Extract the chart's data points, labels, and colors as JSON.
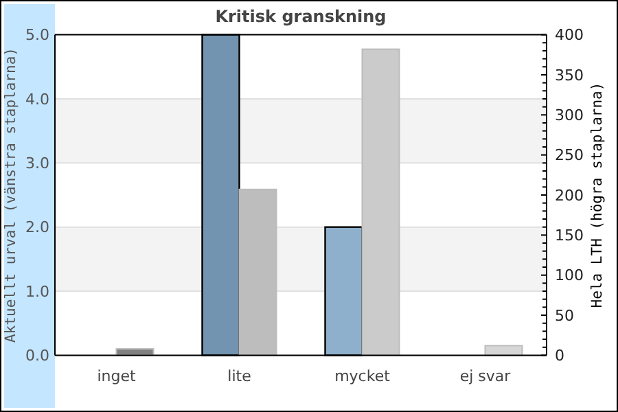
{
  "chart_data": {
    "type": "bar",
    "title": "Kritisk granskning",
    "categories": [
      "inget",
      "lite",
      "mycket",
      "ej svar"
    ],
    "ylabel": "Aktuellt urval (vänstra staplarna)",
    "y2label": "Hela LTH (högra staplarna)",
    "series": [
      {
        "values": [
          0,
          5.0,
          2.0,
          0
        ],
        "colors": [
          "#7294b0",
          "#7294b0",
          "#8fb0cc",
          "#8fb0cc"
        ]
      },
      {
        "values": [
          8,
          207,
          382,
          12
        ],
        "axis": "y2",
        "colors": [
          "#808080",
          "#bdbdbd",
          "#cbcbcb",
          "#d6d6d6"
        ]
      }
    ],
    "ylim": [
      0,
      5
    ],
    "yticks": [
      {
        "value": 0,
        "label": "0.0"
      },
      {
        "value": 1,
        "label": "1.0"
      },
      {
        "value": 2,
        "label": "2.0"
      },
      {
        "value": 3,
        "label": "3.0"
      },
      {
        "value": 4,
        "label": "4.0"
      },
      {
        "value": 5,
        "label": "5.0"
      }
    ],
    "y2lim": [
      0,
      400
    ],
    "y2ticks": [
      0,
      {
        "value": 10,
        "label": null
      },
      {
        "value": 20,
        "label": null
      },
      {
        "value": 30,
        "label": null
      },
      {
        "value": 40,
        "label": null
      },
      50,
      {
        "value": 60,
        "label": null
      },
      {
        "value": 70,
        "label": null
      },
      {
        "value": 80,
        "label": null
      },
      {
        "value": 90,
        "label": null
      },
      100,
      {
        "value": 110,
        "label": null
      },
      {
        "value": 120,
        "label": null
      },
      {
        "value": 130,
        "label": null
      },
      {
        "value": 140,
        "label": null
      },
      150,
      {
        "value": 160,
        "label": null
      },
      {
        "value": 170,
        "label": null
      },
      {
        "value": 180,
        "label": null
      },
      {
        "value": 190,
        "label": null
      },
      200,
      {
        "value": 210,
        "label": null
      },
      {
        "value": 220,
        "label": null
      },
      {
        "value": 230,
        "label": null
      },
      {
        "value": 240,
        "label": null
      },
      250,
      {
        "value": 260,
        "label": null
      },
      {
        "value": 270,
        "label": null
      },
      {
        "value": 280,
        "label": null
      },
      {
        "value": 290,
        "label": null
      },
      300,
      {
        "value": 310,
        "label": null
      },
      {
        "value": 320,
        "label": null
      },
      {
        "value": 330,
        "label": null
      },
      {
        "value": 340,
        "label": null
      },
      350,
      {
        "value": 360,
        "label": null
      },
      {
        "value": 370,
        "label": null
      },
      {
        "value": 380,
        "label": null
      },
      {
        "value": 390,
        "label": null
      },
      400
    ],
    "grid": "y"
  }
}
